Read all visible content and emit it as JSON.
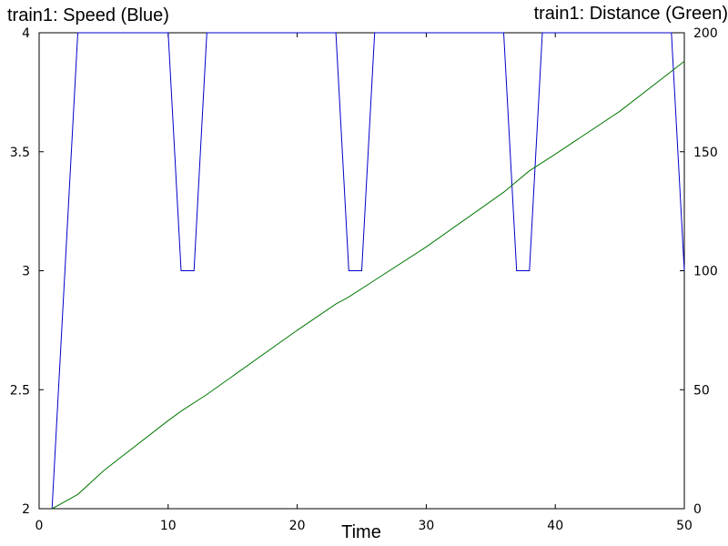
{
  "chart_data": {
    "type": "line",
    "title_left": "train1: Speed (Blue)",
    "title_right": "train1: Distance (Green)",
    "xlabel": "Time",
    "xlim": [
      0,
      50
    ],
    "ylim_left": [
      2,
      4
    ],
    "ylim_right": [
      0,
      200
    ],
    "x_ticks": [
      "0",
      "10",
      "20",
      "30",
      "40",
      "50"
    ],
    "y_ticks_left": [
      "2",
      "2.5",
      "3",
      "3.5",
      "4"
    ],
    "y_ticks_right": [
      "0",
      "50",
      "100",
      "150",
      "200"
    ],
    "grid": false,
    "series": [
      {
        "name": "Speed",
        "axis": "left",
        "color": "#0000cc",
        "x": [
          1,
          3,
          10,
          11,
          12,
          13,
          23,
          24,
          25,
          26,
          36,
          37,
          38,
          39,
          49,
          50
        ],
        "y": [
          2,
          4,
          4,
          3,
          3,
          4,
          4,
          3,
          3,
          4,
          4,
          3,
          3,
          4,
          4,
          3
        ]
      },
      {
        "name": "Distance",
        "axis": "right",
        "color": "#007700",
        "x": [
          1,
          2,
          3,
          5,
          10,
          11,
          13,
          20,
          23,
          24,
          26,
          30,
          36,
          38,
          40,
          45,
          50
        ],
        "y": [
          0,
          3,
          6,
          16,
          37,
          41,
          48,
          75,
          86,
          89,
          96,
          110,
          133,
          142,
          149,
          167,
          188
        ]
      }
    ]
  }
}
